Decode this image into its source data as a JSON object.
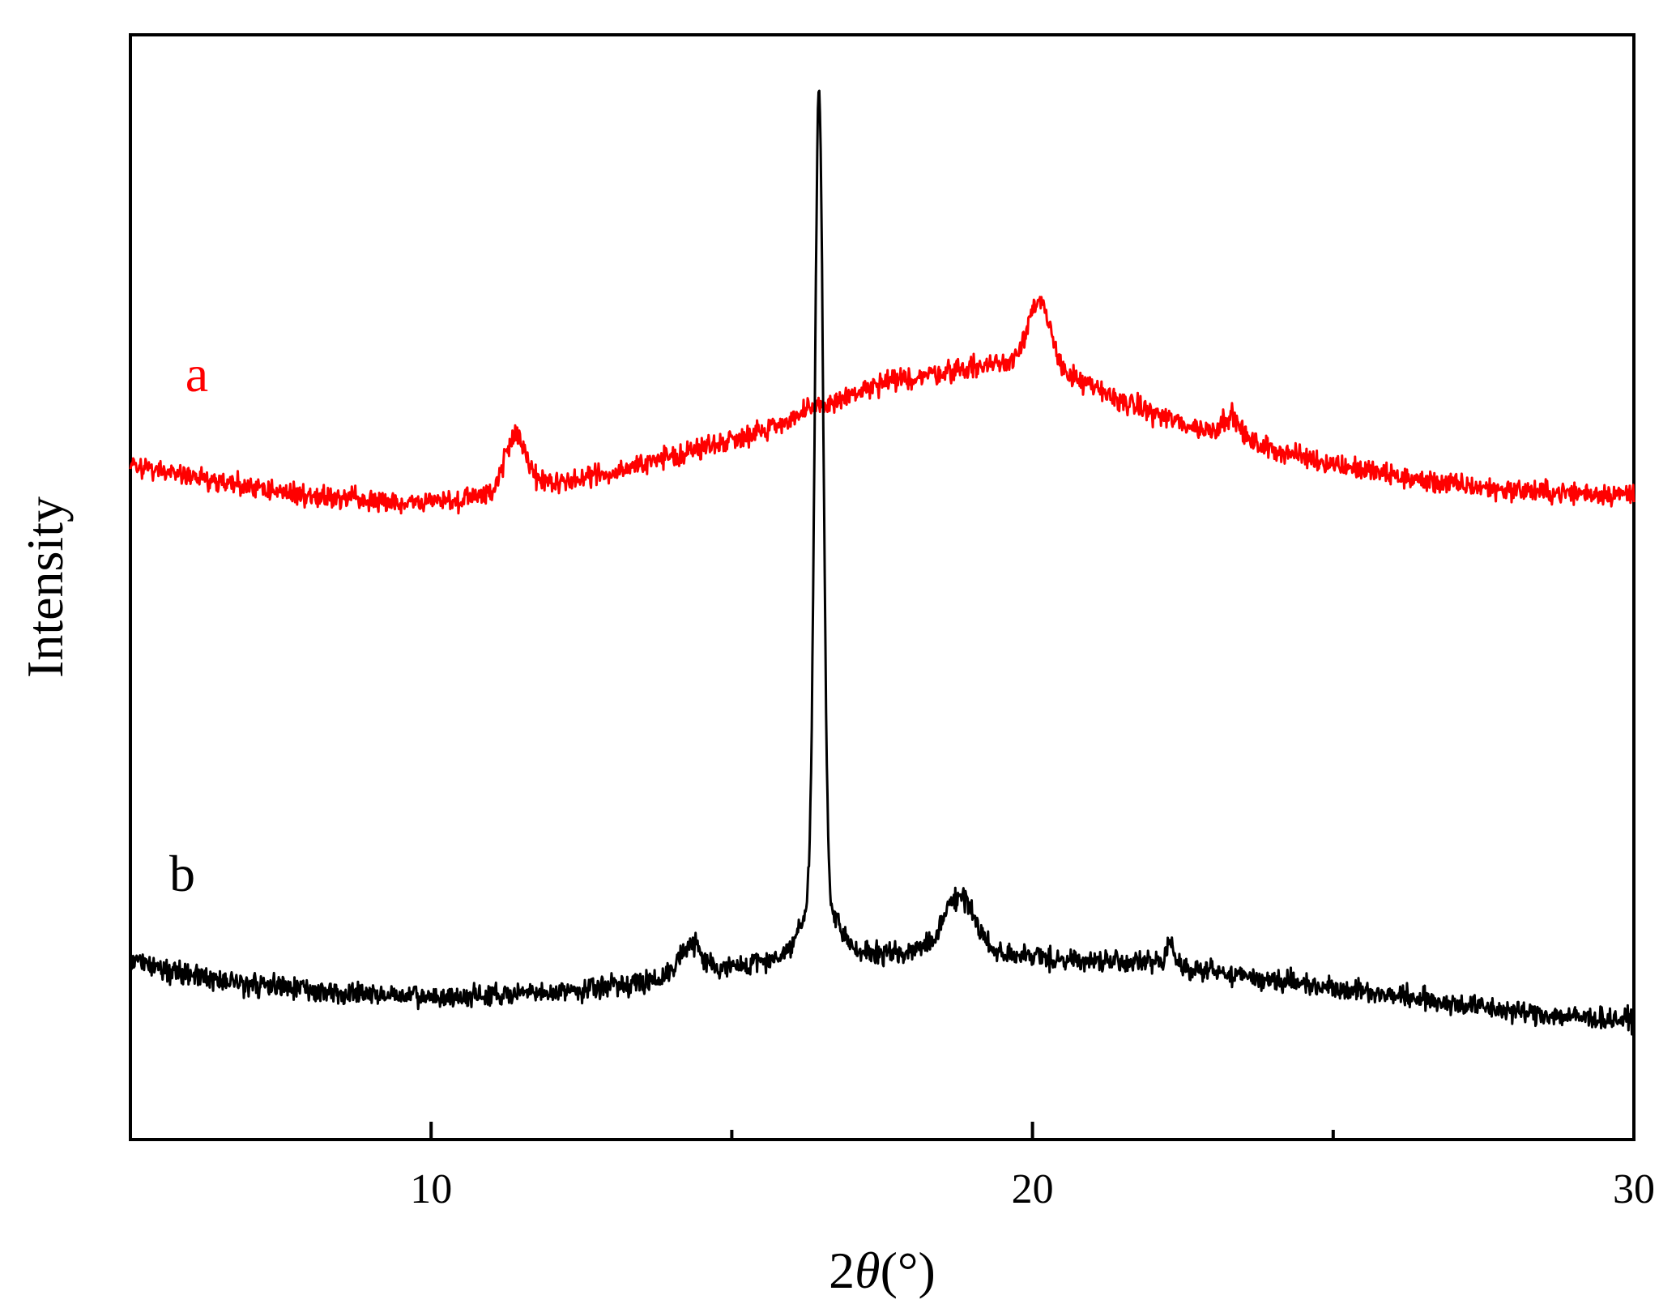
{
  "chart_data": {
    "type": "line",
    "xlabel_prefix": "2",
    "xlabel_symbol": "θ",
    "xlabel_suffix": "(°)",
    "ylabel": "Intensity",
    "xlim": [
      5,
      30
    ],
    "ylim": [
      0,
      100
    ],
    "x_major_ticks": [
      10,
      20,
      30
    ],
    "x_minor_ticks": [
      15,
      25
    ],
    "x_tick_labels": [
      "10",
      "20",
      "30"
    ],
    "grid": false,
    "legend": "inline-labels",
    "series": [
      {
        "name": "a",
        "color": "#ff0000",
        "baseline": [
          [
            5,
            61.0
          ],
          [
            6.5,
            59.5
          ],
          [
            8,
            58.3
          ],
          [
            9.5,
            57.5
          ],
          [
            11,
            58.3
          ],
          [
            12.5,
            59.8
          ],
          [
            14,
            61.8
          ],
          [
            15.5,
            64.2
          ],
          [
            16.5,
            66.4
          ],
          [
            17.5,
            68.4
          ],
          [
            18.5,
            69.5
          ],
          [
            19.5,
            70.3
          ],
          [
            20.5,
            69.3
          ],
          [
            21.5,
            66.8
          ],
          [
            22.5,
            64.8
          ],
          [
            23.5,
            63.2
          ],
          [
            24.5,
            61.8
          ],
          [
            25.5,
            60.6
          ],
          [
            26.5,
            59.6
          ],
          [
            27.5,
            59.0
          ],
          [
            28.5,
            58.6
          ],
          [
            30,
            58.4
          ]
        ],
        "peaks": [
          [
            11.4,
            5.2,
            0.18
          ],
          [
            20.1,
            6.0,
            0.2
          ],
          [
            23.3,
            2.0,
            0.15
          ]
        ],
        "noise": 0.7
      },
      {
        "name": "b",
        "color": "#000000",
        "baseline": [
          [
            5,
            16.2
          ],
          [
            6.5,
            14.4
          ],
          [
            8,
            13.5
          ],
          [
            10,
            12.8
          ],
          [
            12,
            13.3
          ],
          [
            14,
            14.6
          ],
          [
            15.5,
            16.1
          ],
          [
            16.5,
            16.4
          ],
          [
            17.5,
            16.8
          ],
          [
            18.5,
            17.4
          ],
          [
            19.5,
            16.8
          ],
          [
            20.5,
            16.3
          ],
          [
            22,
            16.0
          ],
          [
            23.5,
            14.8
          ],
          [
            25,
            13.8
          ],
          [
            26.5,
            12.7
          ],
          [
            28,
            11.6
          ],
          [
            29,
            11.1
          ],
          [
            30,
            10.8
          ]
        ],
        "peaks": [
          [
            16.45,
            74.0,
            0.07
          ],
          [
            16.45,
            5.0,
            0.3
          ],
          [
            14.3,
            2.8,
            0.2
          ],
          [
            18.8,
            4.8,
            0.25
          ],
          [
            22.3,
            2.0,
            0.07
          ]
        ],
        "noise": 0.7
      }
    ]
  }
}
